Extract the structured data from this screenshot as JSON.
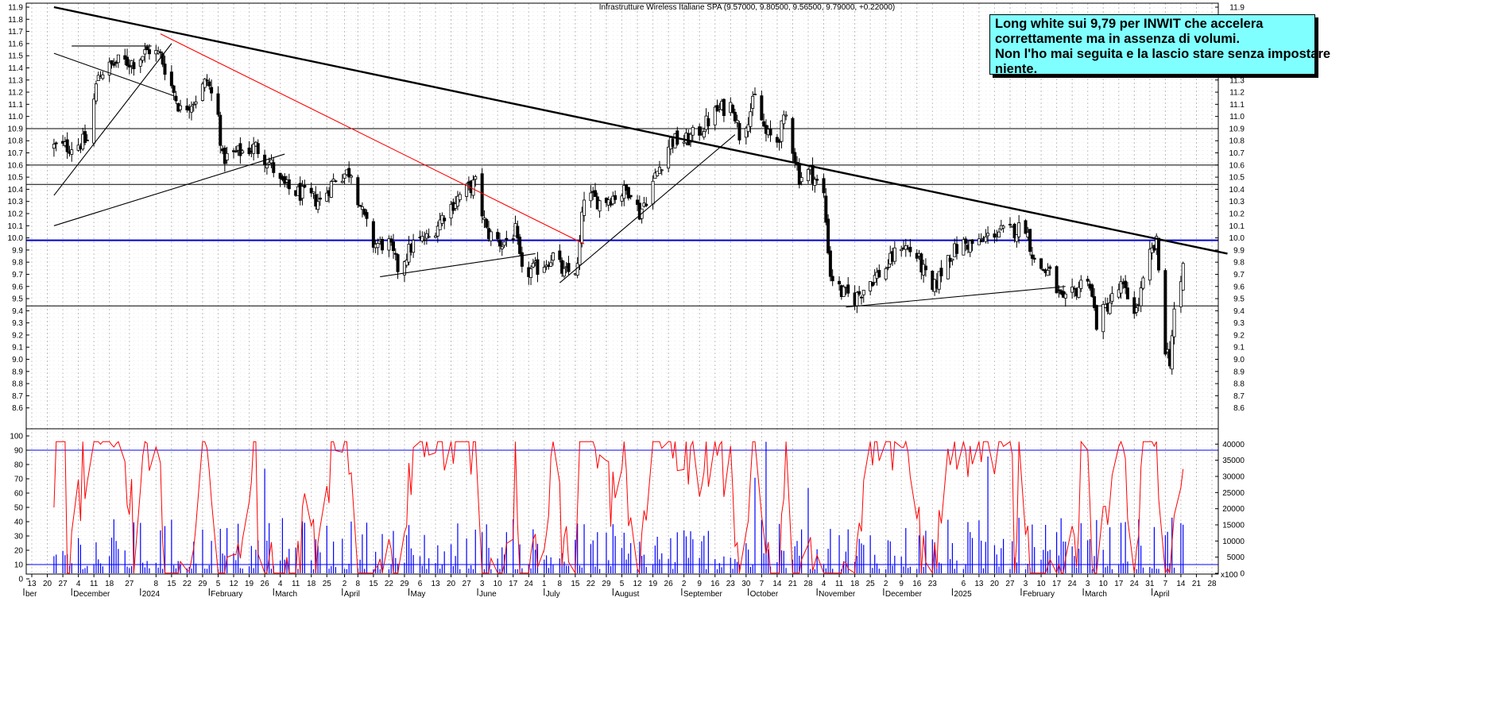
{
  "title": "Infrastrutture Wireless Italiane SPA (9.57000, 9.80500, 9.56500, 9.79000, +0.22000)",
  "note_lines": [
    "Long white sui 9,79 per INWIT che accelera",
    "correttamente ma in assenza di volumi.",
    "Non l'ho mai seguita e la lascio stare senza impostare",
    "niente."
  ],
  "chart_data": [
    {
      "type": "candlestick",
      "title": "Infrastrutture Wireless Italiane SPA (9.57000, 9.80500, 9.56500, 9.79000, +0.22000)",
      "ylim": [
        8.5,
        11.9
      ],
      "y_ticks": [
        8.6,
        8.7,
        8.8,
        8.9,
        9.0,
        9.1,
        9.2,
        9.3,
        9.4,
        9.5,
        9.6,
        9.7,
        9.8,
        9.9,
        10.0,
        10.1,
        10.2,
        10.3,
        10.4,
        10.5,
        10.6,
        10.7,
        10.8,
        10.9,
        11.0,
        11.1,
        11.2,
        11.3,
        11.4,
        11.5,
        11.6,
        11.7,
        11.8,
        11.9
      ],
      "horizontal_levels": [
        10.9,
        10.6,
        10.44,
        9.44
      ],
      "highlight_level": 9.98,
      "last_bar": {
        "open": 9.57,
        "high": 9.805,
        "low": 9.565,
        "close": 9.79,
        "change": 0.22
      },
      "price_path": [
        {
          "d": "2023-11-30",
          "p": 10.75
        },
        {
          "d": "2023-12-08",
          "p": 10.8
        },
        {
          "d": "2023-12-13",
          "p": 11.35
        },
        {
          "d": "2023-12-22",
          "p": 11.45
        },
        {
          "d": "2023-12-29",
          "p": 11.45
        },
        {
          "d": "2024-01-05",
          "p": 11.55
        },
        {
          "d": "2024-01-10",
          "p": 11.5
        },
        {
          "d": "2024-01-16",
          "p": 11.2
        },
        {
          "d": "2024-01-19",
          "p": 11.05
        },
        {
          "d": "2024-01-26",
          "p": 11.15
        },
        {
          "d": "2024-01-31",
          "p": 11.3
        },
        {
          "d": "2024-02-05",
          "p": 11.0
        },
        {
          "d": "2024-02-07",
          "p": 10.65
        },
        {
          "d": "2024-02-14",
          "p": 10.7
        },
        {
          "d": "2024-02-22",
          "p": 10.75
        },
        {
          "d": "2024-02-29",
          "p": 10.6
        },
        {
          "d": "2024-03-04",
          "p": 10.45
        },
        {
          "d": "2024-03-08",
          "p": 10.4
        },
        {
          "d": "2024-03-15",
          "p": 10.35
        },
        {
          "d": "2024-03-22",
          "p": 10.3
        },
        {
          "d": "2024-03-29",
          "p": 10.5
        },
        {
          "d": "2024-04-05",
          "p": 10.55
        },
        {
          "d": "2024-04-10",
          "p": 10.2
        },
        {
          "d": "2024-04-15",
          "p": 9.95
        },
        {
          "d": "2024-04-22",
          "p": 9.95
        },
        {
          "d": "2024-04-26",
          "p": 9.75
        },
        {
          "d": "2024-05-03",
          "p": 9.95
        },
        {
          "d": "2024-05-10",
          "p": 10.0
        },
        {
          "d": "2024-05-17",
          "p": 10.2
        },
        {
          "d": "2024-05-24",
          "p": 10.35
        },
        {
          "d": "2024-05-31",
          "p": 10.45
        },
        {
          "d": "2024-06-05",
          "p": 10.05
        },
        {
          "d": "2024-06-12",
          "p": 9.95
        },
        {
          "d": "2024-06-18",
          "p": 10.05
        },
        {
          "d": "2024-06-21",
          "p": 9.7
        },
        {
          "d": "2024-06-28",
          "p": 9.75
        },
        {
          "d": "2024-07-05",
          "p": 9.85
        },
        {
          "d": "2024-07-10",
          "p": 9.7
        },
        {
          "d": "2024-07-16",
          "p": 9.75
        },
        {
          "d": "2024-07-19",
          "p": 10.35
        },
        {
          "d": "2024-07-26",
          "p": 10.3
        },
        {
          "d": "2024-08-02",
          "p": 10.35
        },
        {
          "d": "2024-08-09",
          "p": 10.4
        },
        {
          "d": "2024-08-13",
          "p": 10.2
        },
        {
          "d": "2024-08-20",
          "p": 10.5
        },
        {
          "d": "2024-08-27",
          "p": 10.8
        },
        {
          "d": "2024-09-03",
          "p": 10.8
        },
        {
          "d": "2024-09-10",
          "p": 10.9
        },
        {
          "d": "2024-09-17",
          "p": 11.05
        },
        {
          "d": "2024-09-24",
          "p": 11.1
        },
        {
          "d": "2024-09-27",
          "p": 10.85
        },
        {
          "d": "2024-10-01",
          "p": 11.0
        },
        {
          "d": "2024-10-04",
          "p": 11.15
        },
        {
          "d": "2024-10-09",
          "p": 10.85
        },
        {
          "d": "2024-10-14",
          "p": 10.8
        },
        {
          "d": "2024-10-18",
          "p": 11.0
        },
        {
          "d": "2024-10-24",
          "p": 10.5
        },
        {
          "d": "2024-10-29",
          "p": 10.55
        },
        {
          "d": "2024-11-04",
          "p": 10.35
        },
        {
          "d": "2024-11-07",
          "p": 9.7
        },
        {
          "d": "2024-11-12",
          "p": 9.55
        },
        {
          "d": "2024-11-18",
          "p": 9.5
        },
        {
          "d": "2024-11-25",
          "p": 9.65
        },
        {
          "d": "2024-12-02",
          "p": 9.75
        },
        {
          "d": "2024-12-09",
          "p": 9.95
        },
        {
          "d": "2024-12-16",
          "p": 9.85
        },
        {
          "d": "2024-12-23",
          "p": 9.55
        },
        {
          "d": "2024-12-30",
          "p": 9.85
        },
        {
          "d": "2025-01-06",
          "p": 9.95
        },
        {
          "d": "2025-01-13",
          "p": 9.95
        },
        {
          "d": "2025-01-20",
          "p": 10.05
        },
        {
          "d": "2025-01-27",
          "p": 10.05
        },
        {
          "d": "2025-02-03",
          "p": 10.1
        },
        {
          "d": "2025-02-07",
          "p": 9.8
        },
        {
          "d": "2025-02-14",
          "p": 9.7
        },
        {
          "d": "2025-02-20",
          "p": 9.45
        },
        {
          "d": "2025-02-25",
          "p": 9.55
        },
        {
          "d": "2025-03-03",
          "p": 9.7
        },
        {
          "d": "2025-03-07",
          "p": 9.3
        },
        {
          "d": "2025-03-12",
          "p": 9.45
        },
        {
          "d": "2025-03-18",
          "p": 9.6
        },
        {
          "d": "2025-03-25",
          "p": 9.4
        },
        {
          "d": "2025-03-31",
          "p": 9.85
        },
        {
          "d": "2025-04-03",
          "p": 9.95
        },
        {
          "d": "2025-04-07",
          "p": 9.1
        },
        {
          "d": "2025-04-09",
          "p": 9.0
        },
        {
          "d": "2025-04-11",
          "p": 9.4
        },
        {
          "d": "2025-04-14",
          "p": 9.57
        },
        {
          "d": "2025-04-15",
          "p": 9.79
        }
      ],
      "trendlines": [
        {
          "from": {
            "d": "2023-11-23",
            "p": 11.9
          },
          "to": {
            "d": "2025-05-05",
            "p": 9.87
          },
          "color": "#000000",
          "weight": "bold"
        },
        {
          "from": {
            "d": "2024-01-10",
            "p": 11.68
          },
          "to": {
            "d": "2024-07-19",
            "p": 9.95
          },
          "color": "#ff0000"
        },
        {
          "from": {
            "d": "2023-11-23",
            "p": 11.52
          },
          "to": {
            "d": "2024-01-16",
            "p": 11.17
          },
          "color": "#000000"
        },
        {
          "from": {
            "d": "2023-11-23",
            "p": 10.35
          },
          "to": {
            "d": "2024-01-15",
            "p": 11.6
          },
          "color": "#000000"
        },
        {
          "from": {
            "d": "2023-11-23",
            "p": 10.1
          },
          "to": {
            "d": "2024-03-06",
            "p": 10.69
          },
          "color": "#000000"
        },
        {
          "from": {
            "d": "2023-12-01",
            "p": 11.58
          },
          "to": {
            "d": "2024-01-06",
            "p": 11.58
          },
          "color": "#000000"
        },
        {
          "from": {
            "d": "2024-04-18",
            "p": 9.68
          },
          "to": {
            "d": "2024-06-27",
            "p": 9.87
          },
          "color": "#000000"
        },
        {
          "from": {
            "d": "2024-07-08",
            "p": 9.63
          },
          "to": {
            "d": "2024-09-25",
            "p": 10.85
          },
          "color": "#000000"
        },
        {
          "from": {
            "d": "2024-11-14",
            "p": 9.43
          },
          "to": {
            "d": "2025-02-21",
            "p": 9.6
          },
          "color": "#000000"
        }
      ]
    },
    {
      "type": "line",
      "name": "oscillator",
      "ylim": [
        -10,
        100
      ],
      "y_ticks": [
        0,
        10,
        20,
        30,
        40,
        50,
        60,
        70,
        80,
        90,
        100
      ],
      "levels": [
        10,
        90
      ],
      "color": "#ff0000"
    },
    {
      "type": "bar",
      "name": "volume",
      "ylim": [
        0,
        45000
      ],
      "y_ticks": [
        0,
        5000,
        10000,
        15000,
        20000,
        25000,
        30000,
        35000,
        40000
      ],
      "color": "#0000ff"
    }
  ],
  "x_axis": {
    "day_ticks": [
      {
        "d": "2023-11-13",
        "l": "13"
      },
      {
        "d": "2023-11-20",
        "l": "20"
      },
      {
        "d": "2023-11-27",
        "l": "27"
      },
      {
        "d": "2023-12-04",
        "l": "4"
      },
      {
        "d": "2023-12-11",
        "l": "11"
      },
      {
        "d": "2023-12-18",
        "l": "18"
      },
      {
        "d": "2023-12-27",
        "l": "27"
      },
      {
        "d": "2024-01-08",
        "l": "8"
      },
      {
        "d": "2024-01-15",
        "l": "15"
      },
      {
        "d": "2024-01-22",
        "l": "22"
      },
      {
        "d": "2024-01-29",
        "l": "29"
      },
      {
        "d": "2024-02-05",
        "l": "5"
      },
      {
        "d": "2024-02-12",
        "l": "12"
      },
      {
        "d": "2024-02-19",
        "l": "19"
      },
      {
        "d": "2024-02-26",
        "l": "26"
      },
      {
        "d": "2024-03-04",
        "l": "4"
      },
      {
        "d": "2024-03-11",
        "l": "11"
      },
      {
        "d": "2024-03-18",
        "l": "18"
      },
      {
        "d": "2024-03-25",
        "l": "25"
      },
      {
        "d": "2024-04-02",
        "l": "2"
      },
      {
        "d": "2024-04-08",
        "l": "8"
      },
      {
        "d": "2024-04-15",
        "l": "15"
      },
      {
        "d": "2024-04-22",
        "l": "22"
      },
      {
        "d": "2024-04-29",
        "l": "29"
      },
      {
        "d": "2024-05-06",
        "l": "6"
      },
      {
        "d": "2024-05-13",
        "l": "13"
      },
      {
        "d": "2024-05-20",
        "l": "20"
      },
      {
        "d": "2024-05-27",
        "l": "27"
      },
      {
        "d": "2024-06-03",
        "l": "3"
      },
      {
        "d": "2024-06-10",
        "l": "10"
      },
      {
        "d": "2024-06-17",
        "l": "17"
      },
      {
        "d": "2024-06-24",
        "l": "24"
      },
      {
        "d": "2024-07-01",
        "l": "1"
      },
      {
        "d": "2024-07-08",
        "l": "8"
      },
      {
        "d": "2024-07-15",
        "l": "15"
      },
      {
        "d": "2024-07-22",
        "l": "22"
      },
      {
        "d": "2024-07-29",
        "l": "29"
      },
      {
        "d": "2024-08-05",
        "l": "5"
      },
      {
        "d": "2024-08-12",
        "l": "12"
      },
      {
        "d": "2024-08-19",
        "l": "19"
      },
      {
        "d": "2024-08-26",
        "l": "26"
      },
      {
        "d": "2024-09-02",
        "l": "2"
      },
      {
        "d": "2024-09-09",
        "l": "9"
      },
      {
        "d": "2024-09-16",
        "l": "16"
      },
      {
        "d": "2024-09-23",
        "l": "23"
      },
      {
        "d": "2024-09-30",
        "l": "30"
      },
      {
        "d": "2024-10-07",
        "l": "7"
      },
      {
        "d": "2024-10-14",
        "l": "14"
      },
      {
        "d": "2024-10-21",
        "l": "21"
      },
      {
        "d": "2024-10-28",
        "l": "28"
      },
      {
        "d": "2024-11-04",
        "l": "4"
      },
      {
        "d": "2024-11-11",
        "l": "11"
      },
      {
        "d": "2024-11-18",
        "l": "18"
      },
      {
        "d": "2024-11-25",
        "l": "25"
      },
      {
        "d": "2024-12-02",
        "l": "2"
      },
      {
        "d": "2024-12-09",
        "l": "9"
      },
      {
        "d": "2024-12-16",
        "l": "16"
      },
      {
        "d": "2024-12-23",
        "l": "23"
      },
      {
        "d": "2025-01-06",
        "l": "6"
      },
      {
        "d": "2025-01-13",
        "l": "13"
      },
      {
        "d": "2025-01-20",
        "l": "20"
      },
      {
        "d": "2025-01-27",
        "l": "27"
      },
      {
        "d": "2025-02-03",
        "l": "3"
      },
      {
        "d": "2025-02-10",
        "l": "10"
      },
      {
        "d": "2025-02-17",
        "l": "17"
      },
      {
        "d": "2025-02-24",
        "l": "24"
      },
      {
        "d": "2025-03-03",
        "l": "3"
      },
      {
        "d": "2025-03-10",
        "l": "10"
      },
      {
        "d": "2025-03-17",
        "l": "17"
      },
      {
        "d": "2025-03-24",
        "l": "24"
      },
      {
        "d": "2025-03-31",
        "l": "31"
      },
      {
        "d": "2025-04-07",
        "l": "7"
      },
      {
        "d": "2025-04-14",
        "l": "14"
      },
      {
        "d": "2025-04-21",
        "l": "21"
      },
      {
        "d": "2025-04-28",
        "l": "28"
      }
    ],
    "month_ticks": [
      {
        "d": "2023-11-01",
        "l": "ber"
      },
      {
        "d": "2023-12-01",
        "l": "December"
      },
      {
        "d": "2024-01-01",
        "l": "2024"
      },
      {
        "d": "2024-02-01",
        "l": "February"
      },
      {
        "d": "2024-03-01",
        "l": "March"
      },
      {
        "d": "2024-04-01",
        "l": "April"
      },
      {
        "d": "2024-05-01",
        "l": "May"
      },
      {
        "d": "2024-06-01",
        "l": "June"
      },
      {
        "d": "2024-07-01",
        "l": "July"
      },
      {
        "d": "2024-08-01",
        "l": "August"
      },
      {
        "d": "2024-09-01",
        "l": "September"
      },
      {
        "d": "2024-10-01",
        "l": "October"
      },
      {
        "d": "2024-11-01",
        "l": "November"
      },
      {
        "d": "2024-12-01",
        "l": "December"
      },
      {
        "d": "2025-01-01",
        "l": "2025"
      },
      {
        "d": "2025-02-01",
        "l": "February"
      },
      {
        "d": "2025-03-01",
        "l": "March"
      },
      {
        "d": "2025-04-01",
        "l": "April"
      }
    ],
    "corner_label": "x100"
  },
  "colors": {
    "grid": "#b8b8b8",
    "blue_level": "#0000cc",
    "red_trend": "#ff0000",
    "osc_line": "#ff0000",
    "volume": "#0000ff",
    "osc_bounds": "#0000ff",
    "note_bg": "#7fffff"
  }
}
